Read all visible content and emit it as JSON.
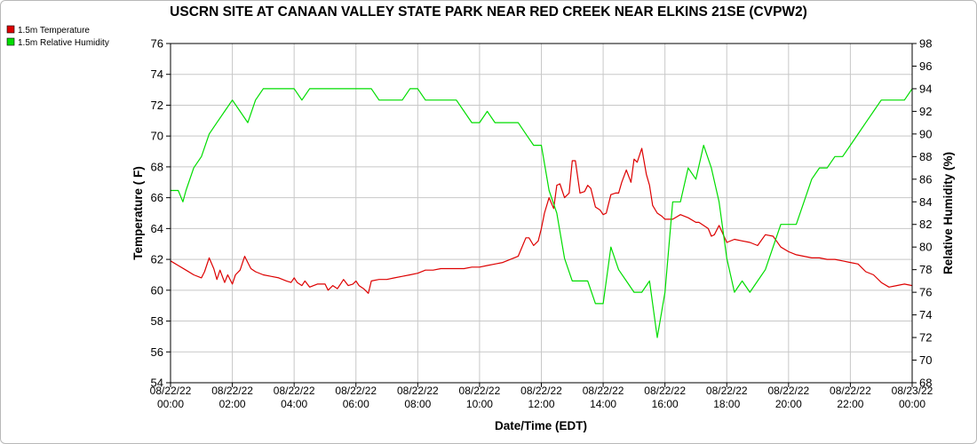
{
  "chart_data": {
    "type": "line",
    "title": "USCRN SITE AT CANAAN VALLEY STATE PARK NEAR RED CREEK NEAR ELKINS 21SE (CVPW2)",
    "xlabel": "Date/Time (EDT)",
    "ylabel_left": "Temperature ( F)",
    "ylabel_right": "Relative Humidity (%)",
    "xlim": [
      0,
      24
    ],
    "ylim_left": [
      54,
      76
    ],
    "ylim_right": [
      68,
      98
    ],
    "yticks_left": [
      "54",
      "56",
      "58",
      "60",
      "62",
      "64",
      "66",
      "68",
      "70",
      "72",
      "74",
      "76"
    ],
    "yticks_right": [
      "68",
      "70",
      "72",
      "74",
      "76",
      "78",
      "80",
      "82",
      "84",
      "86",
      "88",
      "90",
      "92",
      "94",
      "96",
      "98"
    ],
    "xticks": [
      {
        "x": 0,
        "date": "08/22/22",
        "time": "00:00"
      },
      {
        "x": 2,
        "date": "08/22/22",
        "time": "02:00"
      },
      {
        "x": 4,
        "date": "08/22/22",
        "time": "04:00"
      },
      {
        "x": 6,
        "date": "08/22/22",
        "time": "06:00"
      },
      {
        "x": 8,
        "date": "08/22/22",
        "time": "08:00"
      },
      {
        "x": 10,
        "date": "08/22/22",
        "time": "10:00"
      },
      {
        "x": 12,
        "date": "08/22/22",
        "time": "12:00"
      },
      {
        "x": 14,
        "date": "08/22/22",
        "time": "14:00"
      },
      {
        "x": 16,
        "date": "08/22/22",
        "time": "16:00"
      },
      {
        "x": 18,
        "date": "08/22/22",
        "time": "18:00"
      },
      {
        "x": 20,
        "date": "08/22/22",
        "time": "20:00"
      },
      {
        "x": 22,
        "date": "08/22/22",
        "time": "22:00"
      },
      {
        "x": 24,
        "date": "08/23/22",
        "time": "00:00"
      }
    ],
    "grid": true,
    "legend_position": "top-left",
    "series": [
      {
        "name": "1.5m Temperature",
        "axis": "left",
        "color": "#dd0000",
        "x": [
          0.0,
          0.25,
          0.5,
          0.75,
          1.0,
          1.1,
          1.25,
          1.4,
          1.5,
          1.6,
          1.75,
          1.85,
          2.0,
          2.1,
          2.25,
          2.4,
          2.5,
          2.6,
          2.75,
          3.0,
          3.25,
          3.5,
          3.75,
          3.9,
          4.0,
          4.1,
          4.25,
          4.35,
          4.5,
          4.75,
          5.0,
          5.1,
          5.25,
          5.4,
          5.5,
          5.6,
          5.75,
          5.9,
          6.0,
          6.1,
          6.25,
          6.4,
          6.5,
          6.75,
          7.0,
          7.25,
          7.5,
          7.75,
          8.0,
          8.25,
          8.5,
          8.75,
          9.0,
          9.25,
          9.5,
          9.75,
          10.0,
          10.25,
          10.5,
          10.75,
          11.0,
          11.25,
          11.5,
          11.6,
          11.75,
          11.9,
          12.0,
          12.1,
          12.25,
          12.4,
          12.5,
          12.6,
          12.75,
          12.9,
          13.0,
          13.1,
          13.25,
          13.4,
          13.5,
          13.6,
          13.75,
          13.9,
          14.0,
          14.1,
          14.25,
          14.4,
          14.5,
          14.6,
          14.75,
          14.9,
          15.0,
          15.1,
          15.25,
          15.4,
          15.5,
          15.6,
          15.75,
          15.9,
          16.0,
          16.25,
          16.5,
          16.75,
          17.0,
          17.1,
          17.25,
          17.4,
          17.5,
          17.6,
          17.75,
          18.0,
          18.25,
          18.5,
          18.75,
          19.0,
          19.25,
          19.5,
          19.75,
          20.0,
          20.25,
          20.5,
          20.75,
          21.0,
          21.25,
          21.5,
          21.75,
          22.0,
          22.25,
          22.5,
          22.75,
          23.0,
          23.25,
          23.5,
          23.75,
          24.0
        ],
        "y": [
          61.9,
          61.6,
          61.3,
          61.0,
          60.8,
          61.2,
          62.1,
          61.4,
          60.7,
          61.3,
          60.5,
          61.0,
          60.4,
          61.0,
          61.3,
          62.2,
          61.8,
          61.4,
          61.2,
          61.0,
          60.9,
          60.8,
          60.6,
          60.5,
          60.8,
          60.5,
          60.3,
          60.6,
          60.2,
          60.4,
          60.4,
          60.0,
          60.3,
          60.1,
          60.4,
          60.7,
          60.3,
          60.4,
          60.6,
          60.3,
          60.1,
          59.8,
          60.6,
          60.7,
          60.7,
          60.8,
          60.9,
          61.0,
          61.1,
          61.3,
          61.3,
          61.4,
          61.4,
          61.4,
          61.4,
          61.5,
          61.5,
          61.6,
          61.7,
          61.8,
          62.0,
          62.2,
          63.4,
          63.4,
          62.9,
          63.2,
          64.0,
          65.0,
          66.0,
          65.3,
          66.8,
          66.9,
          66.0,
          66.3,
          68.4,
          68.4,
          66.3,
          66.4,
          66.8,
          66.6,
          65.4,
          65.2,
          64.9,
          65.0,
          66.2,
          66.3,
          66.3,
          67.0,
          67.8,
          67.0,
          68.5,
          68.3,
          69.2,
          67.5,
          66.8,
          65.5,
          65.0,
          64.8,
          64.6,
          64.6,
          64.9,
          64.7,
          64.4,
          64.4,
          64.2,
          64.0,
          63.5,
          63.6,
          64.2,
          63.1,
          63.3,
          63.2,
          63.1,
          62.9,
          63.6,
          63.5,
          62.8,
          62.5,
          62.3,
          62.2,
          62.1,
          62.1,
          62.0,
          62.0,
          61.9,
          61.8,
          61.7,
          61.2,
          61.0,
          60.5,
          60.2,
          60.3,
          60.4,
          60.3
        ]
      },
      {
        "name": "1.5m Relative Humidity",
        "axis": "right",
        "color": "#00dd00",
        "x": [
          0.0,
          0.25,
          0.4,
          0.5,
          0.75,
          1.0,
          1.25,
          1.5,
          1.75,
          2.0,
          2.25,
          2.5,
          2.75,
          3.0,
          3.25,
          3.5,
          3.75,
          4.0,
          4.25,
          4.5,
          4.75,
          5.0,
          5.25,
          5.5,
          5.75,
          6.0,
          6.25,
          6.5,
          6.75,
          7.0,
          7.25,
          7.5,
          7.75,
          8.0,
          8.25,
          8.5,
          8.75,
          9.0,
          9.25,
          9.5,
          9.75,
          10.0,
          10.25,
          10.5,
          10.75,
          11.0,
          11.25,
          11.5,
          11.75,
          12.0,
          12.25,
          12.5,
          12.75,
          13.0,
          13.25,
          13.5,
          13.75,
          14.0,
          14.25,
          14.5,
          14.75,
          15.0,
          15.25,
          15.5,
          15.75,
          16.0,
          16.25,
          16.5,
          16.75,
          17.0,
          17.25,
          17.5,
          17.75,
          18.0,
          18.25,
          18.5,
          18.75,
          19.0,
          19.25,
          19.5,
          19.75,
          20.0,
          20.25,
          20.5,
          20.75,
          21.0,
          21.25,
          21.5,
          21.75,
          22.0,
          22.25,
          22.5,
          22.75,
          23.0,
          23.25,
          23.5,
          23.75,
          24.0
        ],
        "y": [
          85,
          85,
          84,
          85,
          87,
          88,
          90,
          91,
          92,
          93,
          92,
          91,
          93,
          94,
          94,
          94,
          94,
          94,
          93,
          94,
          94,
          94,
          94,
          94,
          94,
          94,
          94,
          94,
          93,
          93,
          93,
          93,
          94,
          94,
          93,
          93,
          93,
          93,
          93,
          92,
          91,
          91,
          92,
          91,
          91,
          91,
          91,
          90,
          89,
          89,
          85,
          83,
          79,
          77,
          77,
          77,
          75,
          75,
          80,
          78,
          77,
          76,
          76,
          77,
          72,
          76,
          84,
          84,
          87,
          86,
          89,
          87,
          84,
          79,
          76,
          77,
          76,
          77,
          78,
          80,
          82,
          82,
          82,
          84,
          86,
          87,
          87,
          88,
          88,
          89,
          90,
          91,
          92,
          93,
          93,
          93,
          93,
          94
        ]
      }
    ]
  }
}
